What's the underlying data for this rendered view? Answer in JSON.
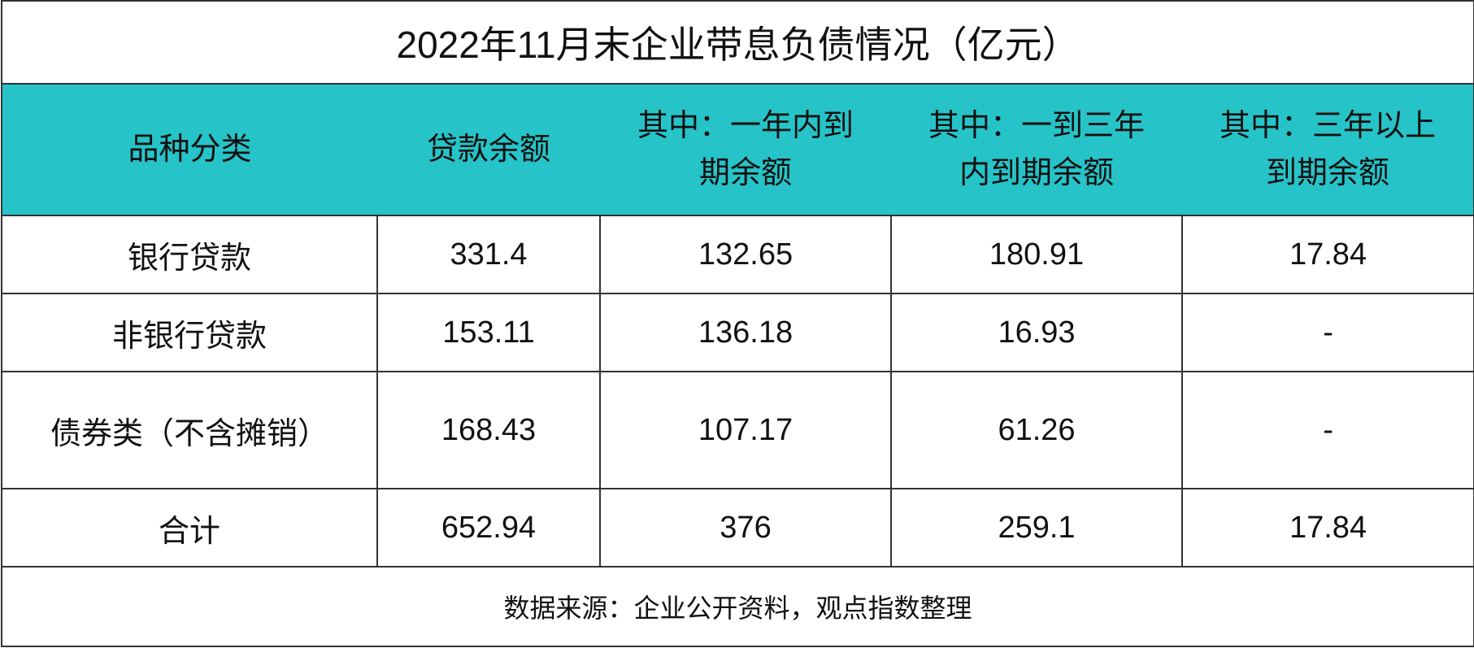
{
  "title": "2022年11月末企业带息负债情况（亿元）",
  "headers": [
    "品种分类",
    "贷款余额",
    "其中：一年内到期余额",
    "其中：一到三年内到期余额",
    "其中：三年以上到期余额"
  ],
  "header_lines": [
    [
      "品种分类"
    ],
    [
      "贷款余额"
    ],
    [
      "其中：一年内到",
      "期余额"
    ],
    [
      "其中：一到三年",
      "内到期余额"
    ],
    [
      "其中：三年以上",
      "到期余额"
    ]
  ],
  "rows": [
    [
      "银行贷款",
      "331.4",
      "132.65",
      "180.91",
      "17.84"
    ],
    [
      "非银行贷款",
      "153.11",
      "136.18",
      "16.93",
      "-"
    ],
    [
      "债券类（不含摊销）",
      "168.43",
      "107.17",
      "61.26",
      "-"
    ],
    [
      "合计",
      "652.94",
      "376",
      "259.1",
      "17.84"
    ]
  ],
  "source": "数据来源：企业公开资料，观点指数整理",
  "colors": {
    "header_bg": "#26C4C8",
    "border": "#333333"
  }
}
